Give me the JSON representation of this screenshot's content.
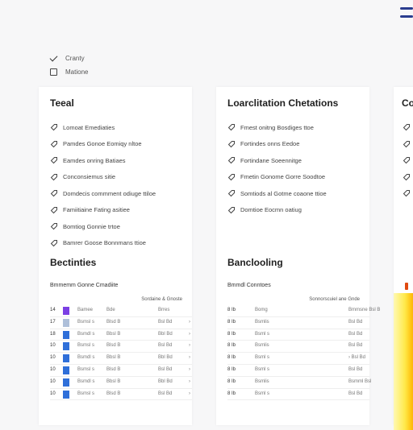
{
  "filters": [
    {
      "label": "Cranty",
      "checked": true
    },
    {
      "label": "Matione",
      "checked": false
    }
  ],
  "panels": [
    {
      "title": "Teeal",
      "items": [
        "Lomoat Emediaties",
        "Pamdes Gonoe Eomiqy nltoe",
        "Eamdes onring Batiaes",
        "Conconsiemus sitie",
        "Domdecis commment odiuge ttiloe",
        "Famiitiaine Fating asitiee",
        "Bomtiog Gonnie trtoe",
        "Bamrer Goose Bonnmans ttioe"
      ],
      "section_title": "Bectinties",
      "sub_title": "Bmmemm Gonne Cmadiite",
      "table_header": "Sordaine & Gnoste",
      "rows": [
        {
          "num": "14",
          "a": "Bamee",
          "b": "Bde",
          "c": "Brres",
          "d": "",
          "bar": "#7b3fe4"
        },
        {
          "num": "17",
          "a": "Bsmsl s",
          "b": "Blsd B",
          "c": "Bsl Bd",
          "d": "›",
          "bar": "#aebfd9"
        },
        {
          "num": "18",
          "a": "Bsmdl s",
          "b": "Bbsl B",
          "c": "Bbl Bd",
          "d": "›",
          "bar": "#2f6fd9"
        },
        {
          "num": "10",
          "a": "Bsmsl s",
          "b": "Blsd B",
          "c": "Bsl Bd",
          "d": "›",
          "bar": "#2f6fd9"
        },
        {
          "num": "10",
          "a": "Bsmdl s",
          "b": "Bbsl B",
          "c": "Bbl Bd",
          "d": "›",
          "bar": "#2f6fd9"
        },
        {
          "num": "10",
          "a": "Bsmsl s",
          "b": "Blsd B",
          "c": "Bsl Bd",
          "d": "›",
          "bar": "#2f6fd9"
        },
        {
          "num": "10",
          "a": "Bsmdl s",
          "b": "Bbsl B",
          "c": "Bbl Bd",
          "d": "›",
          "bar": "#2f6fd9"
        },
        {
          "num": "10",
          "a": "Bsmsl s",
          "b": "Blsd B",
          "c": "Bsl Bd",
          "d": "›",
          "bar": "#2f6fd9"
        }
      ]
    },
    {
      "title": "Loarclitation Chetations",
      "items": [
        "Fmest onitng Bosdiges ttoe",
        "Fortindes onns Eedoe",
        "Fortindane Soeennitge",
        "Fmetin Gonome Gorre Soodtoe",
        "Somtiods al Gotme coaone ttioe",
        "Domtioe Eocmn oatiug"
      ],
      "section_title": "Banclooling",
      "sub_title": "Bmmdl Conntoes",
      "table_header": "Sonnorscuiel ane Gnde",
      "rows": [
        {
          "num": "8 Ib",
          "a": "Bomg",
          "b": "",
          "c": "Bmmsne Bsl B",
          "d": ""
        },
        {
          "num": "8 Ib",
          "a": "Bsmlis",
          "b": "",
          "c": "Bsl Bd",
          "d": ""
        },
        {
          "num": "8 Ib",
          "a": "Bsml s",
          "b": "",
          "c": "Bsl Bd",
          "d": ""
        },
        {
          "num": "8 Ib",
          "a": "Bsmlis",
          "b": "",
          "c": "Bsl Bd",
          "d": ""
        },
        {
          "num": "8 Ib",
          "a": "Bsml s",
          "b": "",
          "c": "› Bsl Bd",
          "d": ""
        },
        {
          "num": "8 Ib",
          "a": "Bsml s",
          "b": "",
          "c": "Bsl Bd",
          "d": ""
        },
        {
          "num": "8 Ib",
          "a": "Bsmlis",
          "b": "",
          "c": "Bsmml Bsl",
          "d": ""
        },
        {
          "num": "8 Ib",
          "a": "Bsml s",
          "b": "",
          "c": "Bsl Bd",
          "d": ""
        }
      ]
    },
    {
      "title": "Co",
      "items": [
        "",
        "",
        "",
        "",
        ""
      ]
    }
  ],
  "colors": {
    "accent": "#2a3d8f",
    "heat_high": "#e2480f",
    "heat_mid": "#ffc20e",
    "heat_low": "#fff9b3"
  },
  "icons": {
    "menu": "hamburger-icon",
    "check": "check-icon",
    "item": "tag-icon"
  }
}
